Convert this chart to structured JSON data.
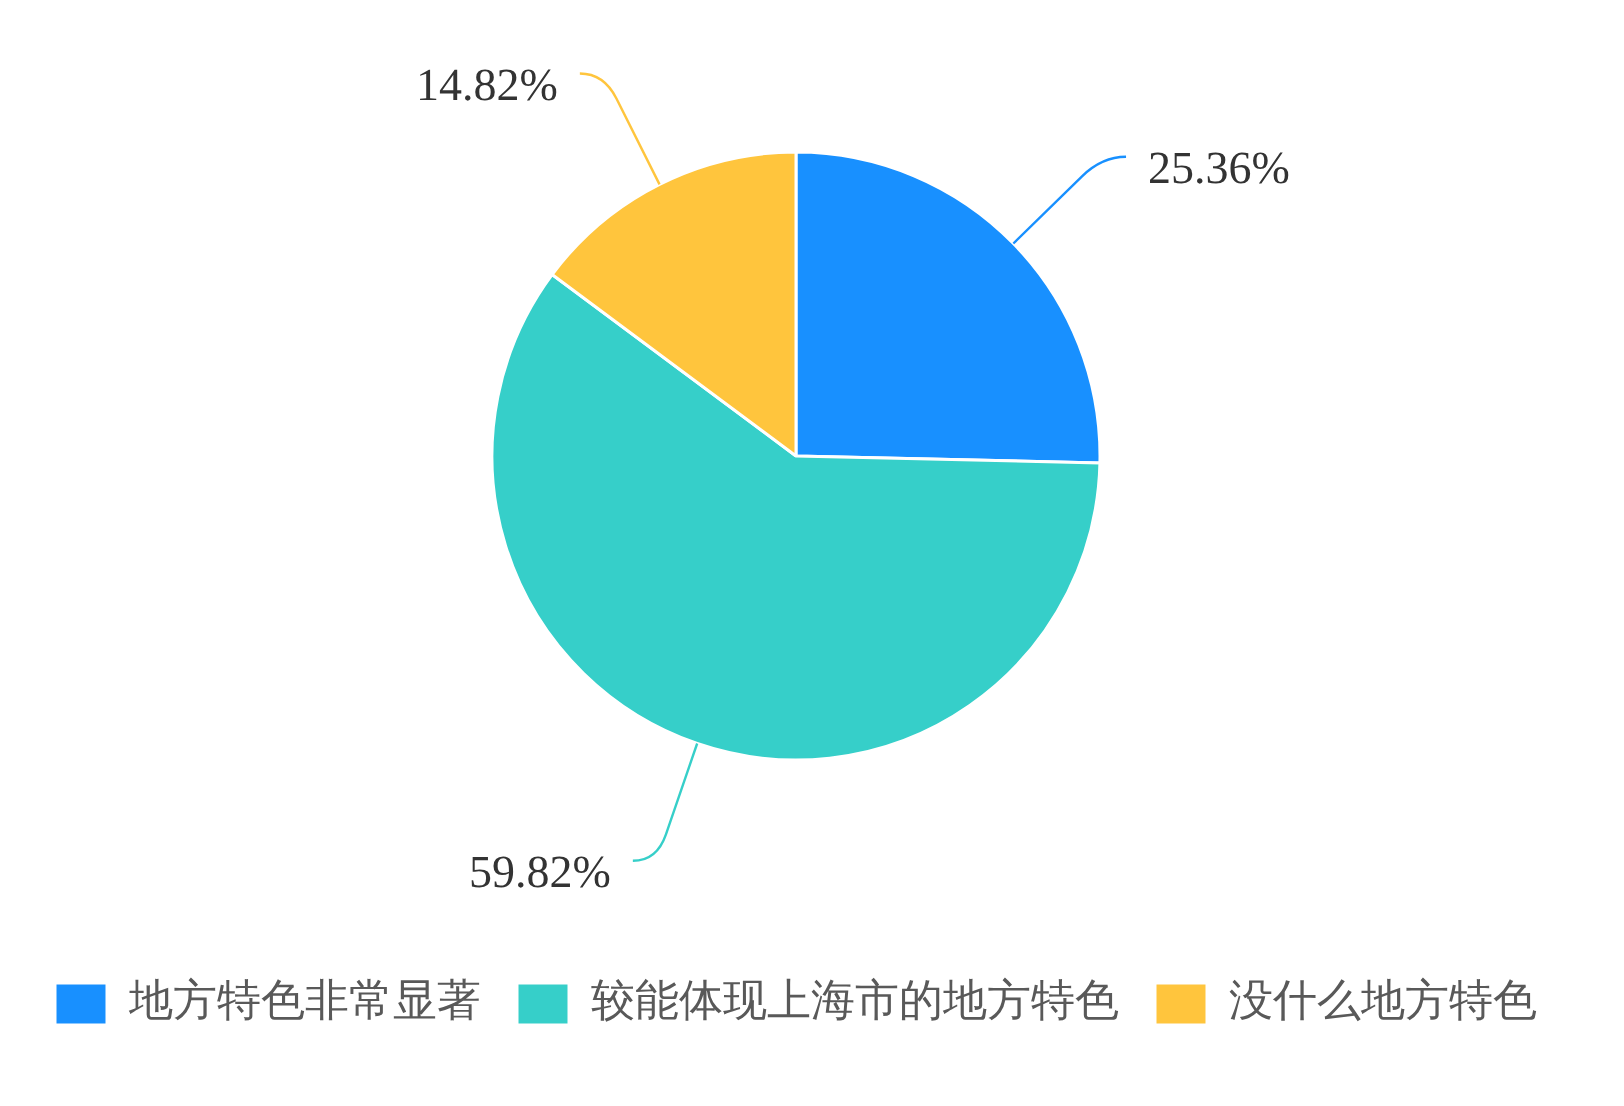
{
  "chart_data": {
    "type": "pie",
    "categories": [
      "地方特色非常显著",
      "较能体现上海市的地方特色",
      "没什么地方特色"
    ],
    "values": [
      25.36,
      59.82,
      14.82
    ],
    "colors": [
      "#1890ff",
      "#36cfc9",
      "#ffc53d"
    ],
    "value_labels": [
      "25.36%",
      "59.82%",
      "14.82%"
    ],
    "legend": "bottom"
  }
}
